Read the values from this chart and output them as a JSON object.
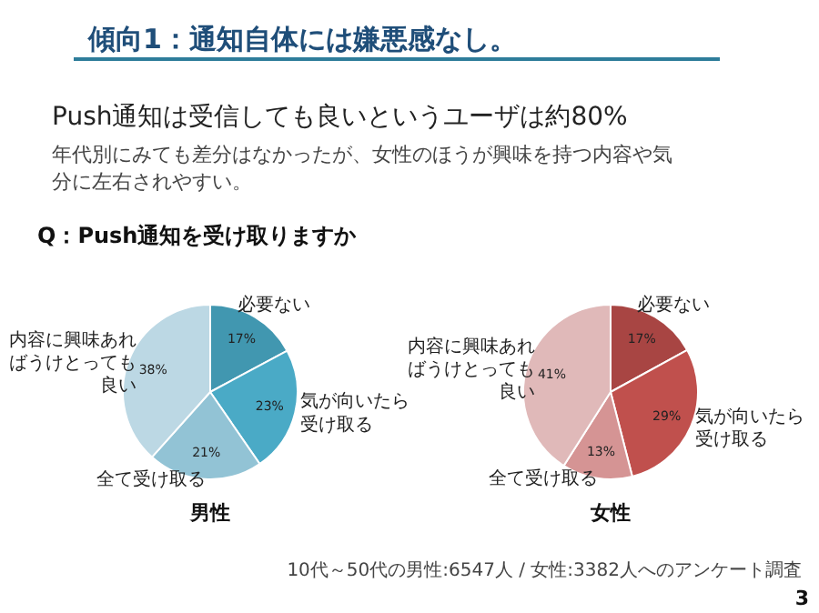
{
  "chart_data": [
    {
      "type": "pie",
      "title": "男性",
      "categories": [
        "必要ない",
        "気が向いたら受け取る",
        "全て受け取る",
        "内容に興味あればうけとっても良い"
      ],
      "values": [
        17,
        23,
        21,
        38
      ],
      "value_labels": [
        "17%",
        "23%",
        "21%",
        "38%"
      ],
      "colors": [
        "#4197b0",
        "#4aaac6",
        "#92c3d5",
        "#bcd8e4"
      ],
      "annotations": [
        "傾向1：通知自体には嫌悪感なし。",
        "Push通知は受信しても良いというユーザは約80%",
        "年代別にみても差分はなかったが、女性のほうが興味を持つ内容や気分に左右されやすい。",
        "Q：Push通知を受け取りますか"
      ]
    },
    {
      "type": "pie",
      "title": "女性",
      "categories": [
        "必要ない",
        "気が向いたら受け取る",
        "全て受け取る",
        "内容に興味あればうけとっても良い"
      ],
      "values": [
        17,
        29,
        13,
        41
      ],
      "value_labels": [
        "17%",
        "29%",
        "13%",
        "41%"
      ],
      "colors": [
        "#a84543",
        "#c0504d",
        "#d59494",
        "#e0b9b9"
      ],
      "annotations": [
        "10代～50代の男性:6547人 / 女性:3382人へのアンケート調査",
        "3"
      ]
    }
  ]
}
